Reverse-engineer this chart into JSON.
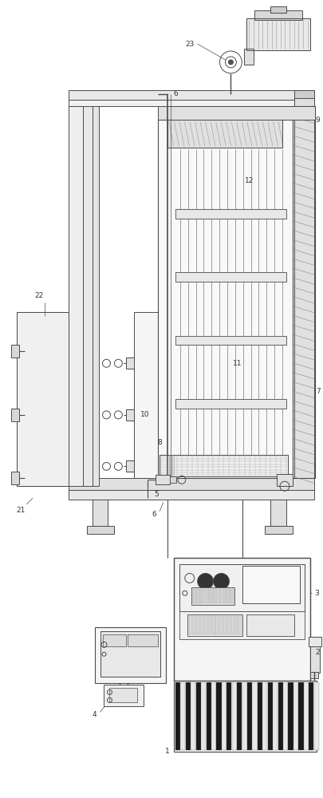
{
  "bg_color": "#ffffff",
  "lc": "#4a4a4a",
  "lw": 0.7,
  "figsize": [
    4.05,
    10.0
  ],
  "dpi": 100
}
